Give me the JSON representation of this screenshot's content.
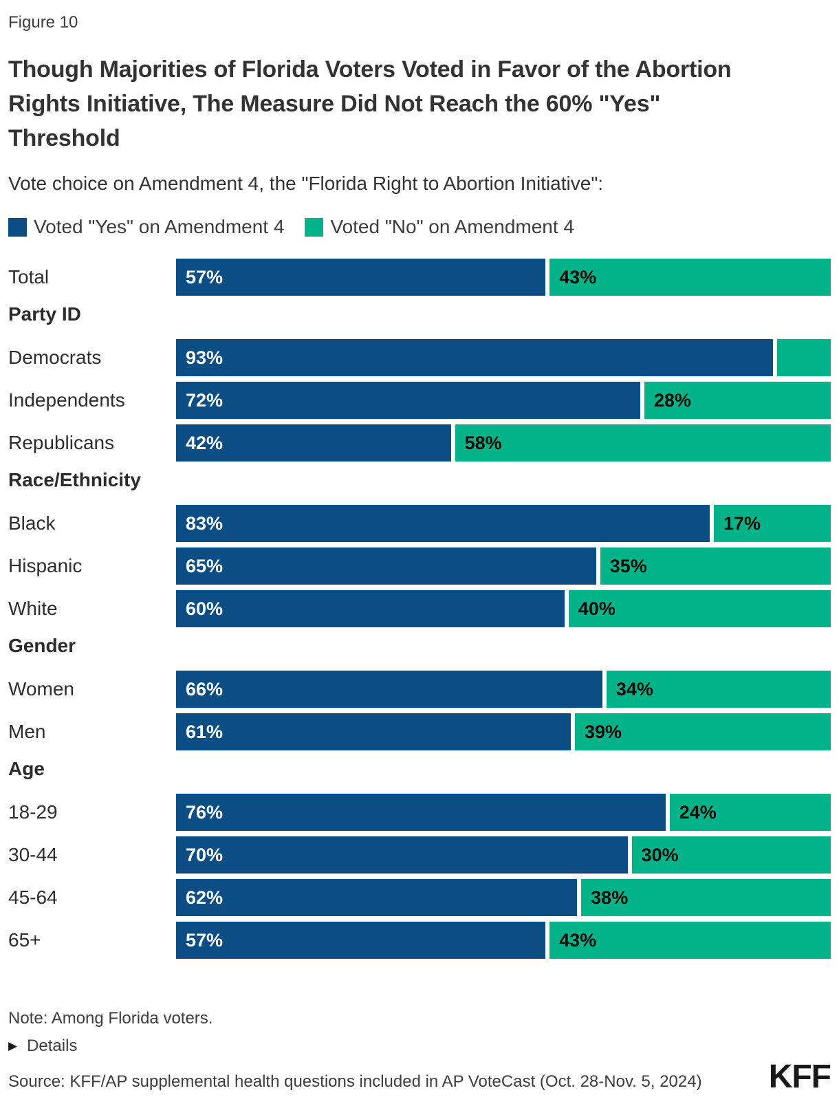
{
  "figure_label": "Figure 10",
  "title": "Though Majorities of Florida Voters Voted in Favor of the Abortion Rights Initiative, The Measure Did Not Reach the 60% \"Yes\" Threshold",
  "subtitle": "Vote choice on Amendment 4, the \"Florida Right to Abortion Initiative\":",
  "colors": {
    "yes": "#0B4D85",
    "no": "#00B388"
  },
  "legend": {
    "items": [
      {
        "label": "Voted \"Yes\" on Amendment 4",
        "color": "#0B4D85"
      },
      {
        "label": "Voted \"No\" on Amendment 4",
        "color": "#00B388"
      }
    ]
  },
  "chart_data": {
    "type": "bar",
    "orientation": "horizontal",
    "stacked": true,
    "unit": "percent",
    "x_range": [
      0,
      100
    ],
    "series": [
      {
        "name": "Voted \"Yes\" on Amendment 4",
        "color": "#0B4D85"
      },
      {
        "name": "Voted \"No\" on Amendment 4",
        "color": "#00B388"
      }
    ],
    "groups": [
      {
        "heading": "",
        "rows": [
          {
            "category": "Total",
            "yes": 57,
            "no": 43,
            "yes_label": "57%",
            "no_label": "43%"
          }
        ]
      },
      {
        "heading": "Party ID",
        "rows": [
          {
            "category": "Democrats",
            "yes": 93,
            "no": 7,
            "yes_label": "93%",
            "no_label": ""
          },
          {
            "category": "Independents",
            "yes": 72,
            "no": 28,
            "yes_label": "72%",
            "no_label": "28%"
          },
          {
            "category": "Republicans",
            "yes": 42,
            "no": 58,
            "yes_label": "42%",
            "no_label": "58%"
          }
        ]
      },
      {
        "heading": "Race/Ethnicity",
        "rows": [
          {
            "category": "Black",
            "yes": 83,
            "no": 17,
            "yes_label": "83%",
            "no_label": "17%"
          },
          {
            "category": "Hispanic",
            "yes": 65,
            "no": 35,
            "yes_label": "65%",
            "no_label": "35%"
          },
          {
            "category": "White",
            "yes": 60,
            "no": 40,
            "yes_label": "60%",
            "no_label": "40%"
          }
        ]
      },
      {
        "heading": "Gender",
        "rows": [
          {
            "category": "Women",
            "yes": 66,
            "no": 34,
            "yes_label": "66%",
            "no_label": "34%"
          },
          {
            "category": "Men",
            "yes": 61,
            "no": 39,
            "yes_label": "61%",
            "no_label": "39%"
          }
        ]
      },
      {
        "heading": "Age",
        "rows": [
          {
            "category": "18-29",
            "yes": 76,
            "no": 24,
            "yes_label": "76%",
            "no_label": "24%"
          },
          {
            "category": "30-44",
            "yes": 70,
            "no": 30,
            "yes_label": "70%",
            "no_label": "30%"
          },
          {
            "category": "45-64",
            "yes": 62,
            "no": 38,
            "yes_label": "62%",
            "no_label": "38%"
          },
          {
            "category": "65+",
            "yes": 57,
            "no": 43,
            "yes_label": "57%",
            "no_label": "43%"
          }
        ]
      }
    ]
  },
  "footer": {
    "note": "Note: Among Florida voters.",
    "details_icon": "▶",
    "details_label": "Details",
    "source": "Source: KFF/AP supplemental health questions included in AP VoteCast (Oct. 28-Nov. 5, 2024)",
    "logo_text": "KFF"
  }
}
